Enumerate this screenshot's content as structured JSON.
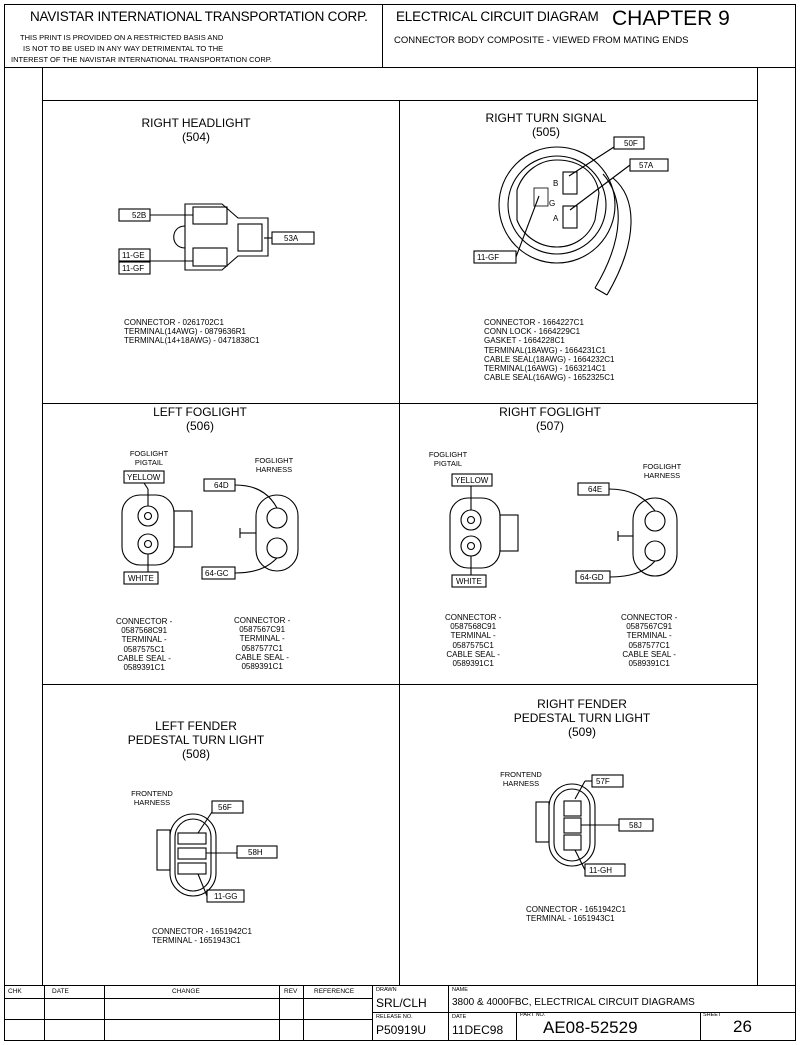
{
  "header": {
    "company": "NAVISTAR INTERNATIONAL TRANSPORTATION CORP.",
    "disclaimer": [
      "THIS PRINT IS PROVIDED ON A RESTRICTED BASIS AND",
      "IS NOT TO BE USED IN ANY WAY DETRIMENTAL TO THE",
      "INTEREST OF THE NAVISTAR INTERNATIONAL TRANSPORTATION CORP."
    ],
    "diagram_title": "ELECTRICAL CIRCUIT DIAGRAM",
    "chapter": "CHAPTER 9",
    "subtitle": "CONNECTOR BODY COMPOSITE - VIEWED FROM MATING ENDS"
  },
  "panels": {
    "p504": {
      "title": [
        "RIGHT HEADLIGHT",
        "(504)"
      ],
      "wires": [
        "52B",
        "53A",
        "11-GE",
        "11-GF"
      ],
      "spec": [
        "CONNECTOR - 0261702C1",
        "TERMINAL(14AWG) - 0879636R1",
        "TERMINAL(14+18AWG) - 0471838C1"
      ]
    },
    "p505": {
      "title": [
        "RIGHT TURN SIGNAL",
        "(505)"
      ],
      "wires": [
        "50F",
        "57A",
        "11-GF"
      ],
      "pins": [
        "B",
        "G",
        "A"
      ],
      "spec": [
        "CONNECTOR - 1664227C1",
        "CONN LOCK - 1664229C1",
        "GASKET - 1664228C1",
        "TERMINAL(18AWG) - 1664231C1",
        "CABLE SEAL(18AWG) - 1664232C1",
        "TERMINAL(16AWG) - 1663214C1",
        "CABLE SEAL(16AWG) - 1652325C1"
      ]
    },
    "p506": {
      "title": [
        "LEFT FOGLIGHT",
        "(506)"
      ],
      "pigtail_label": [
        "FOGLIGHT",
        "PIGTAIL"
      ],
      "harness_label": [
        "FOGLIGHT",
        "HARNESS"
      ],
      "wires": [
        "YELLOW",
        "WHITE",
        "64D",
        "64-GC"
      ],
      "spec_left": [
        "CONNECTOR -",
        "0587568C91",
        "TERMINAL -",
        "0587575C1",
        "CABLE SEAL -",
        "0589391C1"
      ],
      "spec_right": [
        "CONNECTOR -",
        "0587567C91",
        "TERMINAL -",
        "0587577C1",
        "CABLE SEAL -",
        "0589391C1"
      ]
    },
    "p507": {
      "title": [
        "RIGHT FOGLIGHT",
        "(507)"
      ],
      "pigtail_label": [
        "FOGLIGHT",
        "PIGTAIL"
      ],
      "harness_label": [
        "FOGLIGHT",
        "HARNESS"
      ],
      "wires": [
        "YELLOW",
        "WHITE",
        "64E",
        "64-GD"
      ],
      "spec_left": [
        "CONNECTOR -",
        "0587568C91",
        "TERMINAL -",
        "0587575C1",
        "CABLE SEAL -",
        "0589391C1"
      ],
      "spec_right": [
        "CONNECTOR -",
        "0587567C91",
        "TERMINAL -",
        "0587577C1",
        "CABLE SEAL -",
        "0589391C1"
      ]
    },
    "p508": {
      "title": [
        "LEFT FENDER",
        "PEDESTAL TURN LIGHT",
        "(508)"
      ],
      "harness_label": [
        "FRONTEND",
        "HARNESS"
      ],
      "wires": [
        "56F",
        "58H",
        "11-GG"
      ],
      "spec": [
        "CONNECTOR - 1651942C1",
        "TERMINAL - 1651943C1"
      ]
    },
    "p509": {
      "title": [
        "RIGHT FENDER",
        "PEDESTAL TURN LIGHT",
        "(509)"
      ],
      "harness_label": [
        "FRONTEND",
        "HARNESS"
      ],
      "wires": [
        "57F",
        "58J",
        "11-GH"
      ],
      "spec": [
        "CONNECTOR - 1651942C1",
        "TERMINAL - 1651943C1"
      ]
    }
  },
  "title_block": {
    "headers": {
      "chk": "CHK",
      "date": "DATE",
      "change": "CHANGE",
      "rev": "REV",
      "reference": "REFERENCE",
      "drawn": "DRAWN",
      "name": "NAME",
      "release_no": "RELEASE NO.",
      "date2": "DATE",
      "part_no": "PART NO.",
      "sheet": "SHEET"
    },
    "drawn_value": "SRL/CLH",
    "name_value": "3800 & 4000FBC, ELECTRICAL CIRCUIT DIAGRAMS",
    "release_value": "P50919U",
    "date_value": "11DEC98",
    "part_value": "AE08-52529",
    "sheet_value": "26"
  }
}
